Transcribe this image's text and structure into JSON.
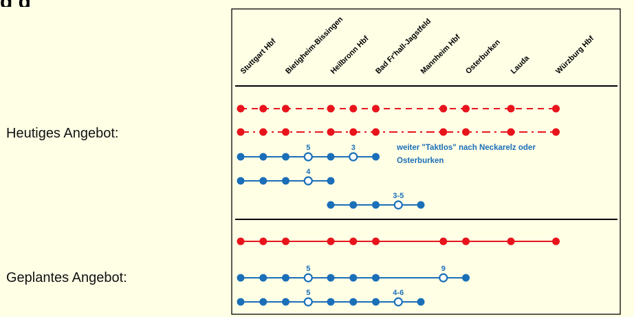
{
  "page": {
    "heading_fragment": "g                                    g",
    "label_current": "Heutiges Angebot:",
    "label_planned": "Geplantes Angebot:"
  },
  "stations": [
    "Stuttgart Hbf",
    "Bietigheim-Bissingen",
    "Heilbronn Hbf",
    "Bad Fr'hall-Jagstfeld",
    "Mannheim Hbf",
    "Osterburken",
    "Lauda",
    "Würzburg Hbf"
  ],
  "colors": {
    "red": "#e8141c",
    "blue": "#1a6fb8",
    "frame": "#000000",
    "background": "#ffffe6"
  },
  "note": {
    "line1": "weiter \"Taktlos\" nach Neckarelz oder",
    "line2": "Osterburken"
  },
  "rows": [
    {
      "section": "current",
      "color": "red",
      "style": "dashed",
      "stops": [
        0,
        1,
        2,
        4,
        5,
        6,
        9,
        10,
        12,
        14
      ],
      "open_stops": [],
      "labels": []
    },
    {
      "section": "current",
      "color": "red",
      "style": "dashdot",
      "stops": [
        0,
        1,
        2,
        4,
        5,
        6,
        9,
        10,
        12,
        14
      ],
      "open_stops": [],
      "labels": []
    },
    {
      "section": "current",
      "color": "blue",
      "style": "solid",
      "stops": [
        0,
        1,
        2,
        3,
        4,
        5,
        6
      ],
      "open_stops": [
        3,
        5
      ],
      "labels": [
        {
          "at": 3,
          "text": "5"
        },
        {
          "at": 5,
          "text": "3"
        }
      ]
    },
    {
      "section": "current",
      "color": "blue",
      "style": "solid",
      "stops": [
        0,
        1,
        2,
        3,
        4
      ],
      "open_stops": [
        3
      ],
      "labels": [
        {
          "at": 3,
          "text": "4"
        }
      ]
    },
    {
      "section": "current",
      "color": "blue",
      "style": "solid",
      "stops": [
        4,
        5,
        6,
        7,
        8
      ],
      "open_stops": [
        7
      ],
      "labels": [
        {
          "at": 7,
          "text": "3-5"
        }
      ]
    },
    {
      "section": "planned",
      "color": "red",
      "style": "solid",
      "stops": [
        0,
        1,
        2,
        4,
        5,
        6,
        9,
        10,
        12,
        14
      ],
      "open_stops": [],
      "labels": []
    },
    {
      "section": "planned",
      "color": "blue",
      "style": "solid",
      "stops": [
        0,
        1,
        2,
        3,
        4,
        5,
        6,
        9,
        10
      ],
      "open_stops": [
        3,
        9
      ],
      "labels": [
        {
          "at": 3,
          "text": "5"
        },
        {
          "at": 9,
          "text": "9"
        }
      ]
    },
    {
      "section": "planned",
      "color": "blue",
      "style": "solid",
      "stops": [
        0,
        1,
        2,
        3,
        4,
        5,
        6,
        7,
        8
      ],
      "open_stops": [
        3,
        7
      ],
      "labels": [
        {
          "at": 3,
          "text": "5"
        },
        {
          "at": 7,
          "text": "4-6"
        }
      ]
    }
  ]
}
